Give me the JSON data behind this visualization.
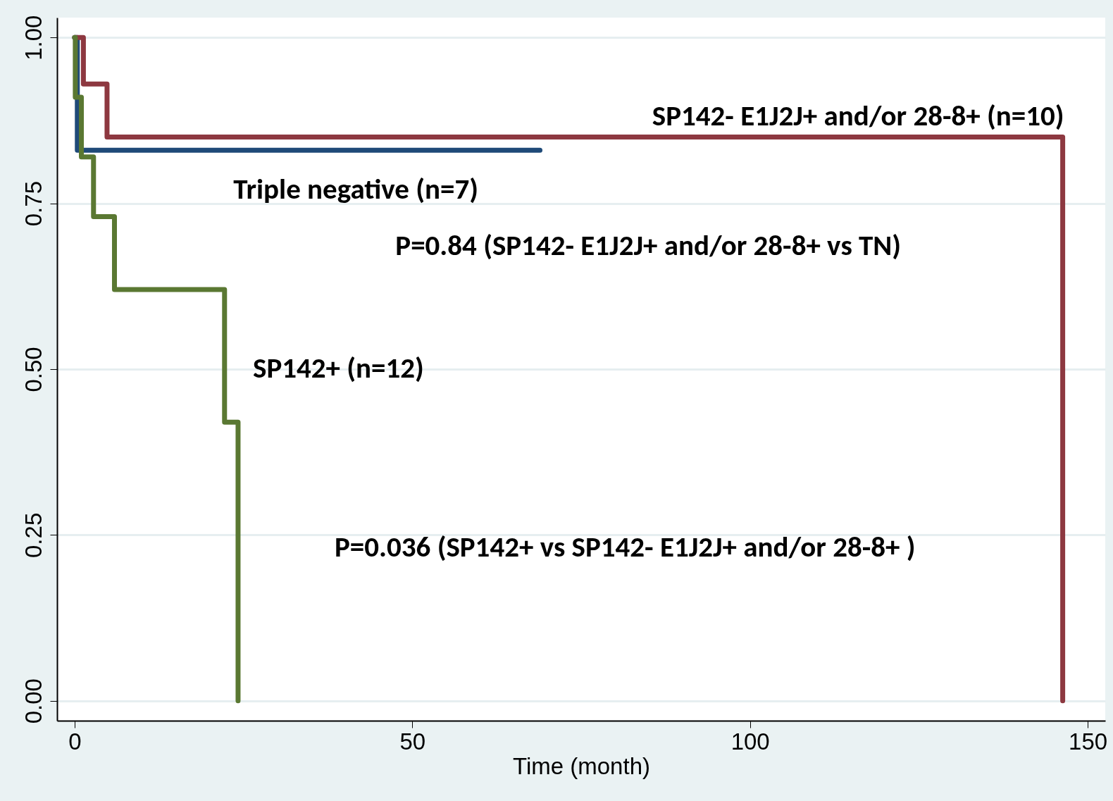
{
  "chart_data": {
    "type": "step",
    "xlabel": "Time (month)",
    "xlim": [
      -2.6,
      152.6
    ],
    "ylim": [
      -0.03,
      1.03
    ],
    "xticks": [
      0,
      50,
      100,
      150
    ],
    "yticks": [
      {
        "value": 0,
        "label": "0.00"
      },
      {
        "value": 0.25,
        "label": "0.25"
      },
      {
        "value": 0.5,
        "label": "0.50"
      },
      {
        "value": 0.75,
        "label": "0.75"
      },
      {
        "value": 1,
        "label": "1.00"
      }
    ],
    "grid": "y",
    "line_style": "solid",
    "series": [
      {
        "name": "Triple negative (n=7)",
        "color": "#1f4a78",
        "x": [
          0,
          0.4,
          68.9
        ],
        "values": [
          1,
          0.83,
          0.83
        ]
      },
      {
        "name": "SP142- E1J2J+ and/or 28-8+ (n=10)",
        "color": "#8d3840",
        "x": [
          0,
          1.3,
          4.8,
          146.3
        ],
        "values": [
          1,
          0.93,
          0.85,
          0
        ]
      },
      {
        "name": "SP142+ (n=12)",
        "color": "#5a7832",
        "x": [
          0,
          0.1,
          1,
          2.8,
          5.9,
          22.2,
          24.2
        ],
        "values": [
          1,
          0.91,
          0.82,
          0.73,
          0.62,
          0.42,
          0
        ]
      }
    ],
    "annotations": [
      "P=0.84 (SP142- E1J2J+ and/or 28-8+ vs TN)",
      "P=0.036 (SP142+ vs SP142- E1J2J+ and/or 28-8+ )"
    ]
  }
}
